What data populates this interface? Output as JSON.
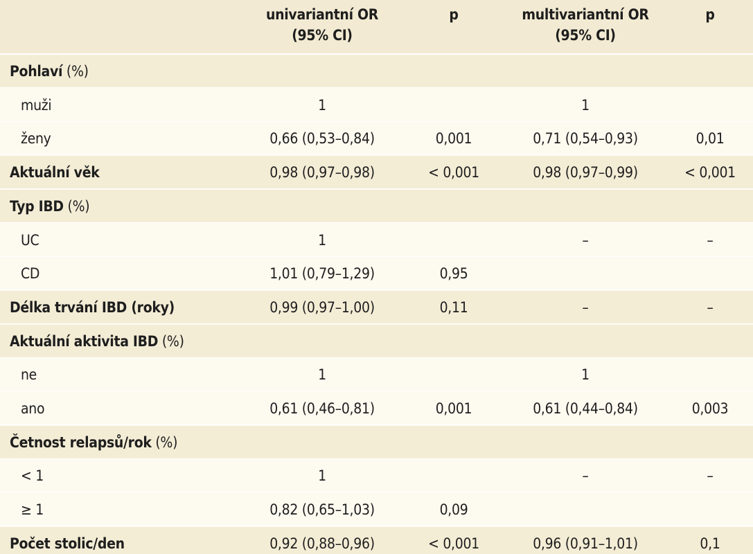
{
  "header": {
    "univariate_line1": "univariantní OR",
    "univariate_line2": "(95% CI)",
    "p1": "p",
    "multivariate_line1": "multivariantní OR",
    "multivariate_line2": "(95% CI)",
    "p2": "p"
  },
  "rows": [
    {
      "type": "cat",
      "label": "Pohlaví",
      "unit": " (%)",
      "uni": "",
      "p1": "",
      "multi": "",
      "p2": ""
    },
    {
      "type": "sub",
      "label": "muži",
      "unit": "",
      "uni": "1",
      "p1": "",
      "multi": "1",
      "p2": ""
    },
    {
      "type": "sub",
      "label": "ženy",
      "unit": "",
      "uni": "0,66 (0,53–0,84)",
      "p1": "0,001",
      "multi": "0,71 (0,54–0,93)",
      "p2": "0,01"
    },
    {
      "type": "cat",
      "label": "Aktuální věk",
      "unit": "",
      "uni": "0,98 (0,97–0,98)",
      "p1": "< 0,001",
      "multi": "0,98 (0,97–0,99)",
      "p2": "< 0,001"
    },
    {
      "type": "cat",
      "label": "Typ IBD",
      "unit": " (%)",
      "uni": "",
      "p1": "",
      "multi": "",
      "p2": ""
    },
    {
      "type": "sub",
      "label": "UC",
      "unit": "",
      "uni": "1",
      "p1": "",
      "multi": "–",
      "p2": "–"
    },
    {
      "type": "sub",
      "label": "CD",
      "unit": "",
      "uni": "1,01 (0,79–1,29)",
      "p1": "0,95",
      "multi": "",
      "p2": ""
    },
    {
      "type": "cat",
      "label": "Délka trvání IBD (roky)",
      "unit": "",
      "uni": "0,99 (0,97–1,00)",
      "p1": "0,11",
      "multi": "–",
      "p2": "–"
    },
    {
      "type": "cat",
      "label": "Aktuální aktivita IBD",
      "unit": " (%)",
      "uni": "",
      "p1": "",
      "multi": "",
      "p2": ""
    },
    {
      "type": "sub",
      "label": "ne",
      "unit": "",
      "uni": "1",
      "p1": "",
      "multi": "1",
      "p2": ""
    },
    {
      "type": "sub",
      "label": "ano",
      "unit": "",
      "uni": "0,61 (0,46–0,81)",
      "p1": "0,001",
      "multi": "0,61 (0,44–0,84)",
      "p2": "0,003"
    },
    {
      "type": "cat",
      "label": "Četnost relapsů/rok",
      "unit": " (%)",
      "uni": "",
      "p1": "",
      "multi": "",
      "p2": ""
    },
    {
      "type": "sub",
      "label": "< 1",
      "unit": "",
      "uni": "1",
      "p1": "",
      "multi": "–",
      "p2": "–"
    },
    {
      "type": "sub",
      "label": "≥ 1",
      "unit": "",
      "uni": "0,82 (0,65–1,03)",
      "p1": "0,09",
      "multi": "",
      "p2": ""
    },
    {
      "type": "cat",
      "label": "Počet stolic/den",
      "unit": "",
      "uni": "0,92 (0,88–0,96)",
      "p1": "< 0,001",
      "multi": "0,96 (0,91–1,01)",
      "p2": "0,1"
    }
  ]
}
